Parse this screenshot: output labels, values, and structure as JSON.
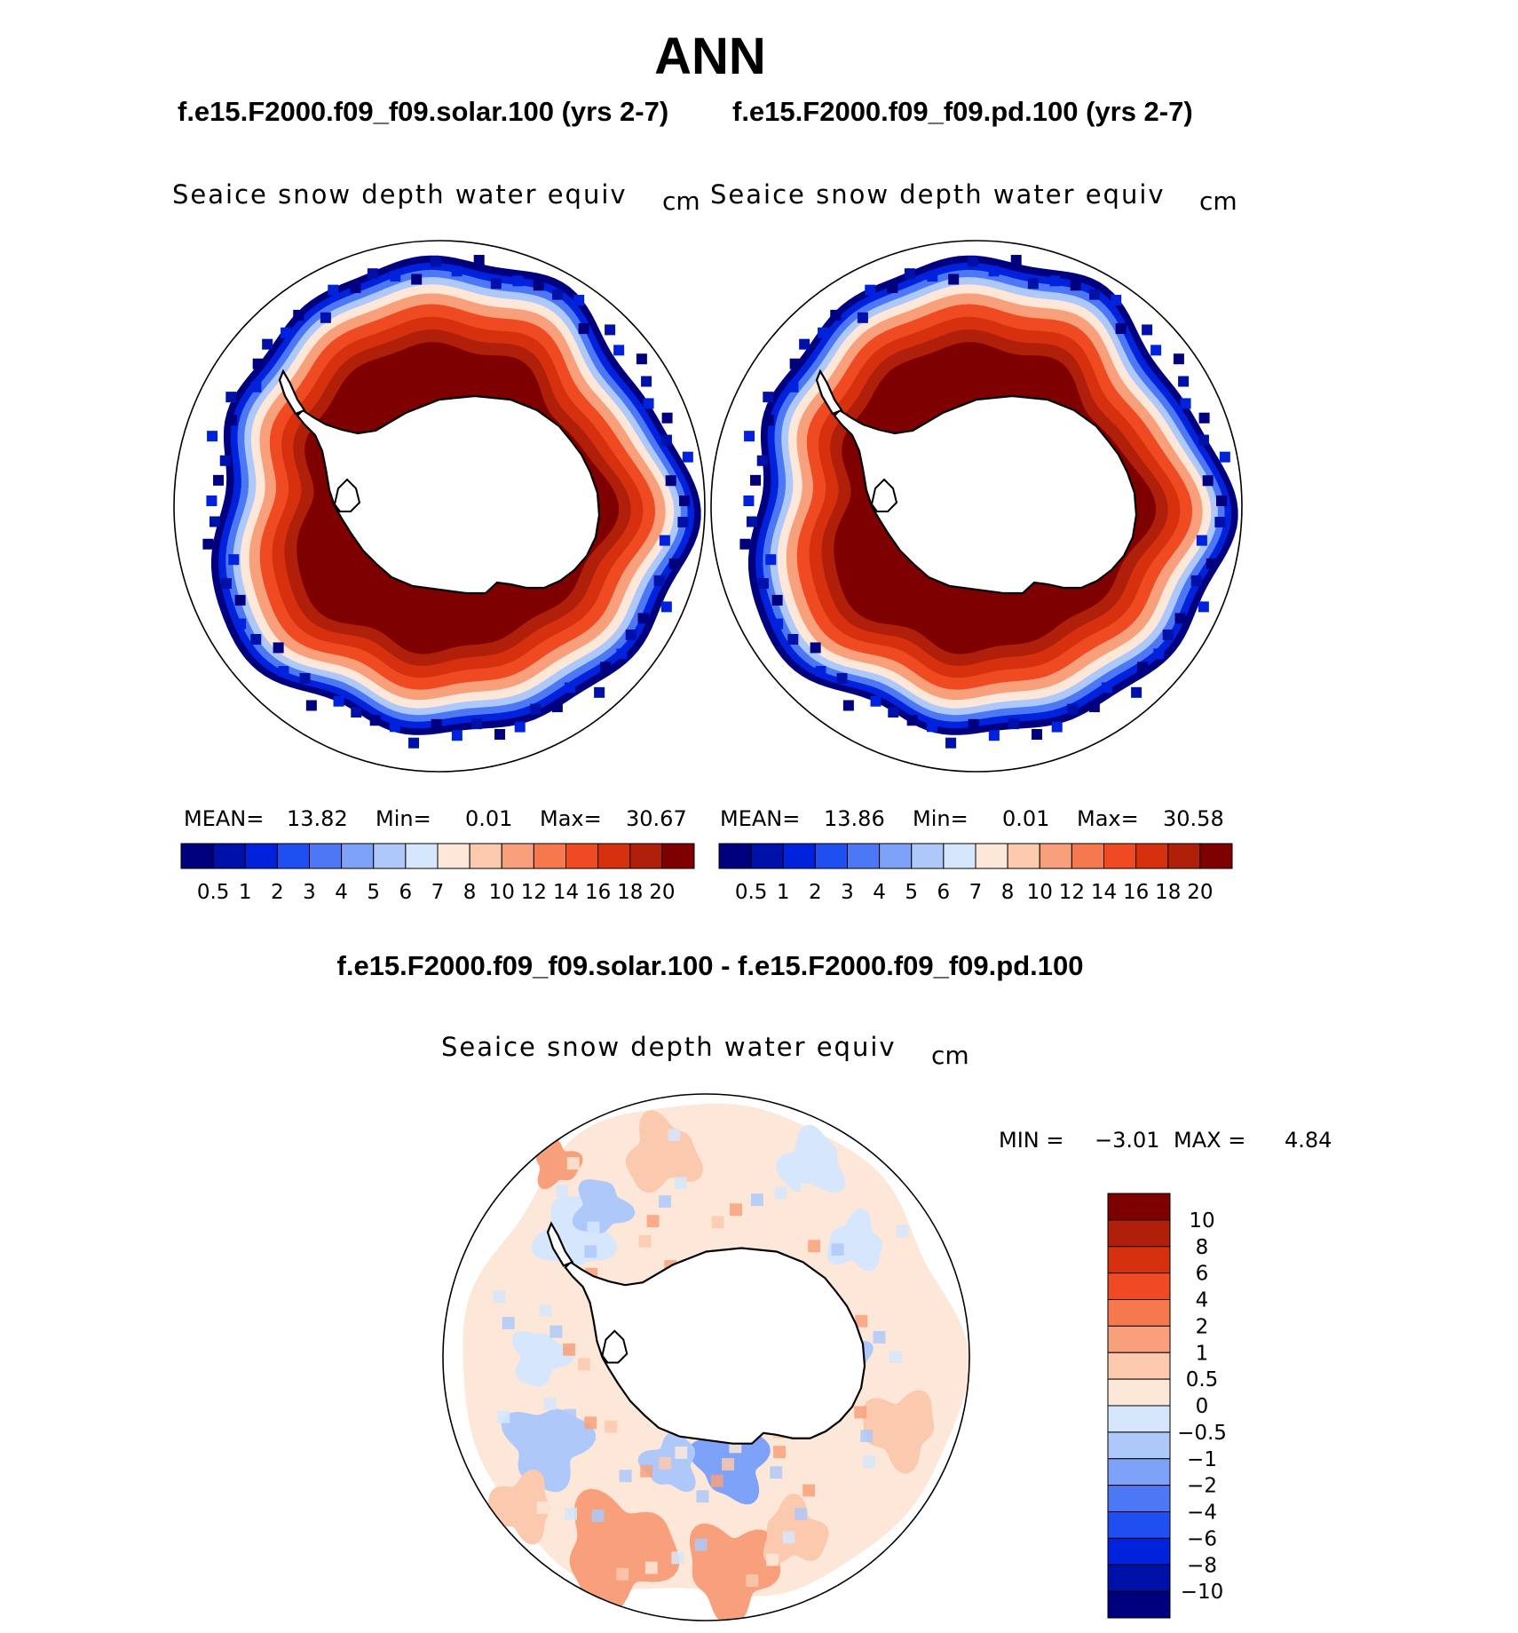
{
  "figure": {
    "season": "ANN",
    "left_case": "f.e15.F2000.f09_f09.solar.100 (yrs 2-7)",
    "right_case": "f.e15.F2000.f09_f09.pd.100 (yrs 2-7)",
    "diff_title": "f.e15.F2000.f09_f09.solar.100 - f.e15.F2000.f09_f09.pd.100",
    "variable": "Seaice snow depth water equiv",
    "units": "cm",
    "mean_label": "MEAN=",
    "min_label": "Min=",
    "max_label": "Max=",
    "diff_min_label": "MIN =",
    "diff_max_label": "MAX ="
  },
  "chart_data": [
    {
      "type": "heatmap",
      "projection": "south-polar-stereographic",
      "title": "f.e15.F2000.f09_f09.solar.100 (yrs 2-7)",
      "variable": "Seaice snow depth water equiv",
      "units": "cm",
      "mean": "13.82",
      "min": "0.01",
      "max": "30.67",
      "contour_levels": [
        "0.5",
        "1",
        "2",
        "3",
        "4",
        "5",
        "6",
        "7",
        "8",
        "10",
        "12",
        "14",
        "16",
        "18",
        "20"
      ],
      "colors": [
        "#00007f",
        "#0011aa",
        "#0022dd",
        "#1f4ff0",
        "#4d78f5",
        "#7da2f8",
        "#aec8fa",
        "#d6e6fc",
        "#fde7d8",
        "#fbc9ad",
        "#f8a07c",
        "#f6794e",
        "#f04a22",
        "#d7300f",
        "#b01f0a",
        "#7f0000"
      ]
    },
    {
      "type": "heatmap",
      "projection": "south-polar-stereographic",
      "title": "f.e15.F2000.f09_f09.pd.100 (yrs 2-7)",
      "variable": "Seaice snow depth water equiv",
      "units": "cm",
      "mean": "13.86",
      "min": "0.01",
      "max": "30.58",
      "contour_levels": [
        "0.5",
        "1",
        "2",
        "3",
        "4",
        "5",
        "6",
        "7",
        "8",
        "10",
        "12",
        "14",
        "16",
        "18",
        "20"
      ],
      "colors": [
        "#00007f",
        "#0011aa",
        "#0022dd",
        "#1f4ff0",
        "#4d78f5",
        "#7da2f8",
        "#aec8fa",
        "#d6e6fc",
        "#fde7d8",
        "#fbc9ad",
        "#f8a07c",
        "#f6794e",
        "#f04a22",
        "#d7300f",
        "#b01f0a",
        "#7f0000"
      ]
    },
    {
      "type": "heatmap",
      "projection": "south-polar-stereographic",
      "title": "f.e15.F2000.f09_f09.solar.100 - f.e15.F2000.f09_f09.pd.100",
      "variable": "Seaice snow depth water equiv",
      "units": "cm",
      "min": "−3.01",
      "max": "4.84",
      "contour_levels": [
        "10",
        "8",
        "6",
        "4",
        "2",
        "1",
        "0.5",
        "0",
        "−0.5",
        "−1",
        "−2",
        "−4",
        "−6",
        "−8",
        "−10"
      ],
      "colors": [
        "#7f0000",
        "#b01f0a",
        "#d7300f",
        "#f04a22",
        "#f6794e",
        "#f8a07c",
        "#fbc9ad",
        "#fde7d8",
        "#d6e6fc",
        "#aec8fa",
        "#7da2f8",
        "#4d78f5",
        "#1f4ff0",
        "#0022dd",
        "#0011aa",
        "#00007f"
      ]
    }
  ]
}
